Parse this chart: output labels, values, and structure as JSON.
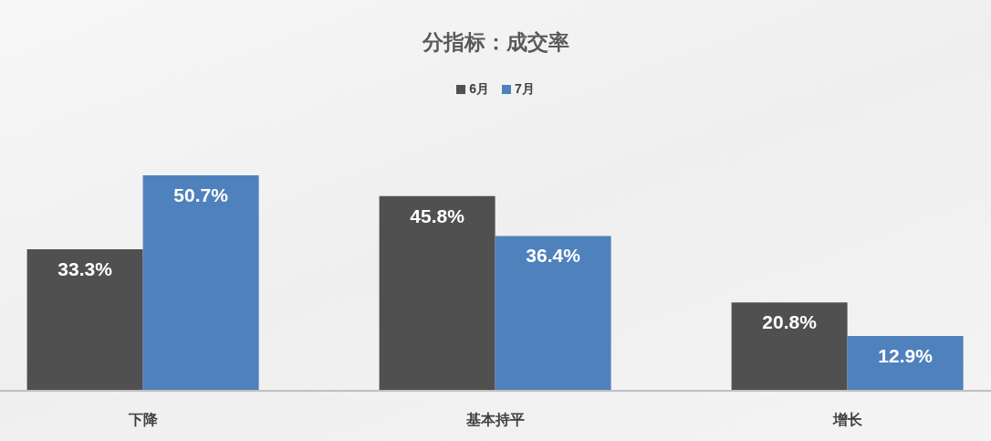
{
  "chart_data": {
    "type": "bar",
    "title": "分指标：成交率",
    "categories": [
      "下降",
      "基本持平",
      "增长"
    ],
    "series": [
      {
        "name": "6月",
        "color": "#505050",
        "values": [
          33.3,
          45.8,
          20.8
        ],
        "value_labels": [
          "33.3%",
          "45.8%",
          "20.8%"
        ]
      },
      {
        "name": "7月",
        "color": "#4f81bd",
        "values": [
          50.7,
          36.4,
          12.9
        ],
        "value_labels": [
          "50.7%",
          "36.4%",
          "12.9%"
        ]
      }
    ],
    "legend": "top",
    "grid": false,
    "tick_labels": "x"
  }
}
